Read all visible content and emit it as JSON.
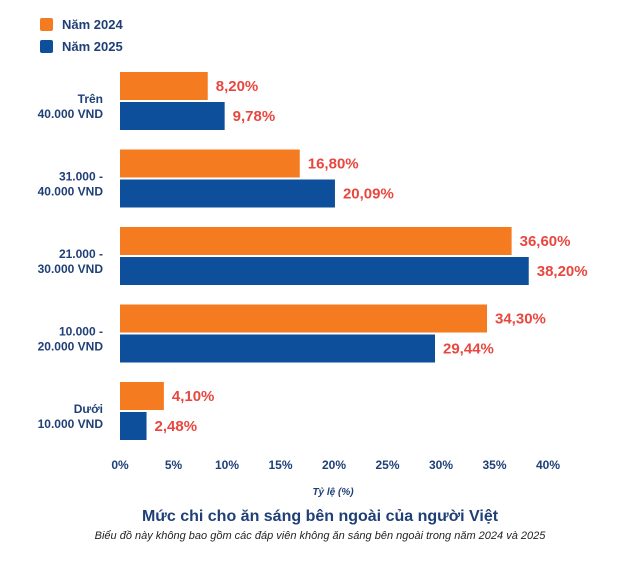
{
  "chart_data": {
    "type": "bar",
    "orientation": "horizontal",
    "title": "Mức chi cho ăn sáng bên ngoài của người Việt",
    "subtitle": "Biểu đồ này không bao gồm các đáp viên không ăn sáng bên ngoài trong năm 2024 và 2025",
    "xlabel": "Tỷ lệ (%)",
    "ylabel": "",
    "xlim": [
      0,
      40
    ],
    "xticks": [
      "0%",
      "5%",
      "10%",
      "15%",
      "20%",
      "25%",
      "30%",
      "35%",
      "40%"
    ],
    "categories": [
      [
        "Trên",
        "40.000 VND"
      ],
      [
        "31.000 -",
        "40.000 VND"
      ],
      [
        "21.000 -",
        "30.000 VND"
      ],
      [
        "10.000 -",
        "20.000 VND"
      ],
      [
        "Dưới",
        "10.000 VND"
      ]
    ],
    "series": [
      {
        "name": "Năm 2024",
        "color": "#f47b20",
        "values": [
          8.2,
          16.8,
          36.6,
          34.3,
          4.1
        ],
        "labels": [
          "8,20%",
          "16,80%",
          "36,60%",
          "34,30%",
          "4,10%"
        ]
      },
      {
        "name": "Năm 2025",
        "color": "#0e4f9c",
        "values": [
          9.78,
          20.09,
          38.2,
          29.44,
          2.48
        ],
        "labels": [
          "9,78%",
          "20,09%",
          "38,20%",
          "29,44%",
          "2,48%"
        ]
      }
    ],
    "grid": false,
    "legend": "top-left"
  }
}
